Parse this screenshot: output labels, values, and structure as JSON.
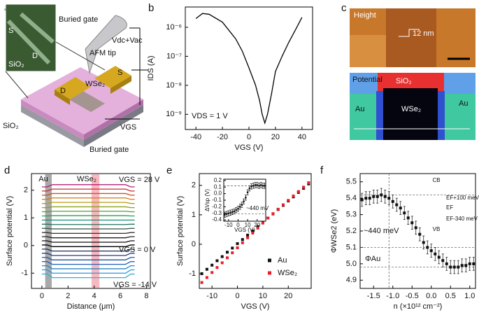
{
  "panel_labels": [
    "a",
    "b",
    "c",
    "d",
    "e",
    "f"
  ],
  "diagram_a": {
    "labels": [
      "S",
      "D",
      "SiO₂",
      "Buried gate",
      "AFM tip",
      "Vdc+Vac",
      "S",
      "WSe₂",
      "D",
      "SiO₂",
      "VGS",
      "Buried gate"
    ]
  },
  "image_c": {
    "labels": [
      "Height",
      "12 nm",
      "Potential",
      "SiO₂",
      "Au",
      "WSe₂",
      "Au"
    ]
  },
  "chart_data": [
    {
      "type": "line",
      "xlabel": "VGS (V)",
      "ylabel": "IDS (A)",
      "annotations": [
        "VDS = 1 V"
      ],
      "x": [
        -40,
        -35,
        -30,
        -20,
        -10,
        -5,
        0,
        5,
        8,
        10,
        12,
        14,
        17,
        20,
        25,
        30,
        35,
        40
      ],
      "values": [
        2e-06,
        3e-06,
        2.8e-06,
        1.5e-06,
        4e-07,
        1.5e-07,
        4e-08,
        1e-08,
        3e-09,
        1e-09,
        5e-10,
        1e-09,
        5e-09,
        3e-08,
        1e-07,
        3e-07,
        8e-07,
        2.2e-06
      ],
      "color": "#000000",
      "log_y": true,
      "xlim": [
        -48,
        48
      ],
      "ylim": [
        3e-10,
        5e-06
      ],
      "xticks": [
        -40,
        -20,
        0,
        20,
        40
      ],
      "yticks": [
        {
          "value": 1e-09,
          "label": "10⁻⁹"
        },
        {
          "value": 1e-08,
          "label": "10⁻⁸"
        },
        {
          "value": 1e-07,
          "label": "10⁻⁷"
        },
        {
          "value": 1e-06,
          "label": "10⁻⁶"
        }
      ]
    },
    {
      "type": "line",
      "xlabel": "Distance (μm)",
      "ylabel": "Surface potential (V)",
      "annotations": [
        "Au",
        "WSe₂",
        "VGS = 28 V",
        "VGS = 0 V",
        "VGS = -14 V"
      ],
      "annotation_colors": [
        "#000000",
        "#000000",
        "#b0207a",
        "#000000",
        "#2aa8d8"
      ],
      "x": [
        0,
        0.4,
        0.8,
        3.5,
        6.4,
        6.8,
        7.1
      ],
      "bands": [
        {
          "x": [
            0.25,
            0.75
          ],
          "color": "#8c8c8c"
        },
        {
          "x": [
            3.8,
            4.4
          ],
          "color": "#f4a0aa"
        }
      ],
      "series": [
        {
          "color": "#b0207a",
          "values": [
            2.12,
            2.12,
            2.2,
            2.2,
            2.2,
            2.12,
            2.12
          ]
        },
        {
          "color": "#c0302f",
          "values": [
            1.97,
            1.97,
            2.04,
            2.04,
            2.04,
            1.97,
            1.97
          ]
        },
        {
          "color": "#d05020",
          "values": [
            1.82,
            1.82,
            1.88,
            1.88,
            1.88,
            1.82,
            1.82
          ]
        },
        {
          "color": "#d07a10",
          "values": [
            1.67,
            1.67,
            1.72,
            1.72,
            1.72,
            1.67,
            1.67
          ]
        },
        {
          "color": "#b89a10",
          "values": [
            1.52,
            1.52,
            1.56,
            1.56,
            1.56,
            1.52,
            1.52
          ]
        },
        {
          "color": "#8aa020",
          "values": [
            1.37,
            1.37,
            1.4,
            1.4,
            1.4,
            1.37,
            1.37
          ]
        },
        {
          "color": "#50a030",
          "values": [
            1.22,
            1.22,
            1.24,
            1.24,
            1.24,
            1.22,
            1.22
          ]
        },
        {
          "color": "#20a050",
          "values": [
            1.07,
            1.07,
            1.08,
            1.08,
            1.08,
            1.07,
            1.07
          ]
        },
        {
          "color": "#109070",
          "values": [
            0.92,
            0.92,
            0.92,
            0.92,
            0.92,
            0.92,
            0.92
          ]
        },
        {
          "color": "#207060",
          "values": [
            0.77,
            0.77,
            0.76,
            0.76,
            0.76,
            0.77,
            0.77
          ]
        },
        {
          "color": "#305040",
          "values": [
            0.62,
            0.62,
            0.6,
            0.6,
            0.6,
            0.62,
            0.62
          ]
        },
        {
          "color": "#303030",
          "values": [
            0.47,
            0.47,
            0.44,
            0.44,
            0.44,
            0.47,
            0.47
          ]
        },
        {
          "color": "#202020",
          "values": [
            0.32,
            0.32,
            0.28,
            0.28,
            0.28,
            0.32,
            0.32
          ]
        },
        {
          "color": "#101010",
          "values": [
            0.17,
            0.17,
            0.12,
            0.12,
            0.12,
            0.17,
            0.17
          ]
        },
        {
          "color": "#000000",
          "values": [
            0.02,
            0.02,
            -0.04,
            -0.04,
            -0.04,
            0.02,
            0.02
          ]
        },
        {
          "color": "#1a2a50",
          "values": [
            -0.13,
            -0.13,
            -0.2,
            -0.2,
            -0.2,
            -0.13,
            -0.13
          ]
        },
        {
          "color": "#203a80",
          "values": [
            -0.28,
            -0.28,
            -0.36,
            -0.36,
            -0.36,
            -0.28,
            -0.28
          ]
        },
        {
          "color": "#2050a0",
          "values": [
            -0.43,
            -0.43,
            -0.52,
            -0.52,
            -0.52,
            -0.43,
            -0.43
          ]
        },
        {
          "color": "#2064b8",
          "values": [
            -0.58,
            -0.58,
            -0.68,
            -0.68,
            -0.68,
            -0.58,
            -0.58
          ]
        },
        {
          "color": "#2a80c8",
          "values": [
            -0.73,
            -0.73,
            -0.84,
            -0.84,
            -0.84,
            -0.73,
            -0.73
          ]
        },
        {
          "color": "#2a98d8",
          "values": [
            -0.88,
            -0.88,
            -1.0,
            -1.0,
            -1.0,
            -0.88,
            -0.88
          ]
        },
        {
          "color": "#30b0e0",
          "values": [
            -1.03,
            -1.03,
            -1.16,
            -1.16,
            -1.16,
            -1.03,
            -1.03
          ]
        }
      ],
      "xlim": [
        -0.8,
        8.3
      ],
      "ylim": [
        -1.55,
        2.6
      ],
      "xticks": [
        0,
        2,
        4,
        6,
        8
      ],
      "yticks": [
        -1,
        0,
        1,
        2
      ]
    },
    {
      "type": "scatter",
      "xlabel": "VGS (V)",
      "ylabel": "Surface potential (V)",
      "legend": "lower right",
      "x": [
        -14,
        -12,
        -10,
        -8,
        -6,
        -4,
        -2,
        0,
        2,
        4,
        6,
        8,
        10,
        12,
        14,
        16,
        18,
        20,
        22,
        24,
        26,
        28
      ],
      "series": [
        {
          "name": "Au",
          "color": "#111111",
          "values": [
            -1.0,
            -0.85,
            -0.71,
            -0.56,
            -0.42,
            -0.27,
            -0.13,
            0.02,
            0.16,
            0.31,
            0.45,
            0.6,
            0.74,
            0.89,
            1.03,
            1.18,
            1.32,
            1.47,
            1.61,
            1.76,
            1.9,
            2.05
          ]
        },
        {
          "name": "WSe₂",
          "color": "#e8202a",
          "values": [
            -1.3,
            -1.13,
            -0.96,
            -0.79,
            -0.63,
            -0.46,
            -0.29,
            -0.12,
            0.05,
            0.22,
            0.38,
            0.55,
            0.72,
            0.89,
            1.04,
            1.19,
            1.34,
            1.49,
            1.64,
            1.79,
            1.94,
            2.09
          ]
        }
      ],
      "xlim": [
        -15,
        29
      ],
      "ylim": [
        -1.5,
        2.4
      ],
      "xticks": [
        -10,
        0,
        10,
        20
      ],
      "yticks": [
        -1,
        0,
        1,
        2
      ]
    },
    {
      "type": "scatter",
      "xlabel": "VGS (V)",
      "ylabel": "ΔVsp (V)",
      "annotations": [
        "~440 mV"
      ],
      "x": [
        -14,
        -12,
        -10,
        -8,
        -6,
        -4,
        -2,
        0,
        2,
        4,
        6,
        8,
        10,
        12,
        14,
        16,
        18,
        20,
        22,
        24,
        26,
        28
      ],
      "values": [
        -0.32,
        -0.31,
        -0.3,
        -0.29,
        -0.28,
        -0.27,
        -0.25,
        -0.23,
        -0.2,
        -0.17,
        -0.12,
        -0.06,
        0.02,
        0.08,
        0.11,
        0.12,
        0.13,
        0.13,
        0.12,
        0.13,
        0.12,
        0.12
      ],
      "errors": [
        0.04,
        0.04,
        0.04,
        0.04,
        0.04,
        0.04,
        0.04,
        0.04,
        0.04,
        0.04,
        0.04,
        0.04,
        0.04,
        0.04,
        0.04,
        0.04,
        0.04,
        0.04,
        0.04,
        0.04,
        0.04,
        0.04
      ],
      "color": "#111111",
      "hlines": [
        0.12,
        -0.31
      ],
      "xlim": [
        -15,
        29
      ],
      "ylim": [
        -0.42,
        0.22
      ],
      "xticks": [
        -10,
        0,
        10,
        20
      ],
      "yticks": [
        -0.4,
        -0.3,
        -0.2,
        -0.1,
        {
          "value": 0,
          "label": "0.0"
        },
        0.1,
        0.2
      ]
    },
    {
      "type": "scatter",
      "xlabel": "n (×10¹² cm⁻²)",
      "ylabel": "ΦWSe2 (eV)",
      "annotations": [
        "~440 meV",
        "ΦAu",
        "CB",
        "VB",
        "EF+100 meV",
        "EF",
        "EF-340 meV"
      ],
      "x": [
        -1.8,
        -1.7,
        -1.6,
        -1.5,
        -1.4,
        -1.3,
        -1.2,
        -1.1,
        -1.0,
        -0.9,
        -0.8,
        -0.7,
        -0.6,
        -0.5,
        -0.4,
        -0.3,
        -0.2,
        -0.1,
        0,
        0.1,
        0.2,
        0.3,
        0.4,
        0.5,
        0.6,
        0.7,
        0.8,
        0.9,
        1.0,
        1.1
      ],
      "values": [
        5.39,
        5.4,
        5.4,
        5.41,
        5.41,
        5.42,
        5.41,
        5.4,
        5.38,
        5.36,
        5.34,
        5.31,
        5.28,
        5.25,
        5.22,
        5.18,
        5.13,
        5.1,
        5.08,
        5.06,
        5.04,
        5.02,
        5.0,
        4.98,
        4.98,
        4.98,
        4.99,
        4.99,
        5.0,
        5.0
      ],
      "errors": [
        0.04,
        0.04,
        0.04,
        0.04,
        0.04,
        0.04,
        0.04,
        0.04,
        0.04,
        0.04,
        0.04,
        0.04,
        0.04,
        0.04,
        0.04,
        0.04,
        0.04,
        0.04,
        0.04,
        0.04,
        0.04,
        0.04,
        0.04,
        0.04,
        0.04,
        0.04,
        0.04,
        0.04,
        0.04,
        0.04
      ],
      "color": "#111111",
      "hlines": [
        5.42,
        5.1,
        4.98
      ],
      "vlines": [
        -1.1
      ],
      "xlim": [
        -1.85,
        1.15
      ],
      "ylim": [
        4.85,
        5.55
      ],
      "xticks": [
        -1.5,
        {
          "value": -1,
          "label": "-1.0"
        },
        -0.5,
        {
          "value": 0,
          "label": "0.0"
        },
        0.5,
        {
          "value": 1,
          "label": "1.0"
        }
      ],
      "yticks": [
        4.9,
        {
          "value": 5,
          "label": "5.0"
        },
        5.1,
        5.2,
        5.3,
        5.4,
        5.5
      ]
    }
  ]
}
